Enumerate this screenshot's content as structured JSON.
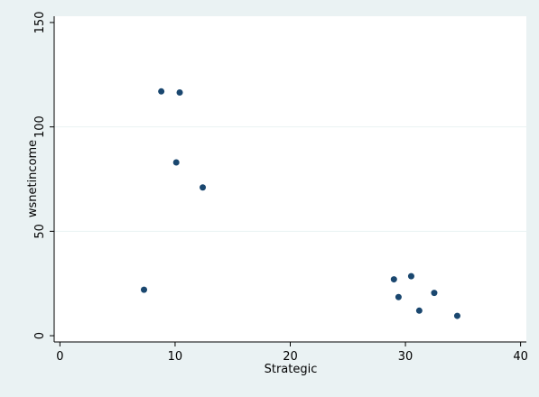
{
  "chart_data": {
    "type": "scatter",
    "title": "",
    "xlabel": "Strategic",
    "ylabel": "wsnetincome",
    "xlim": [
      -0.5,
      40.5
    ],
    "ylim": [
      -3,
      153
    ],
    "x_ticks": [
      0,
      10,
      20,
      30,
      40
    ],
    "y_ticks": [
      0,
      50,
      100,
      150
    ],
    "x_tick_labels": [
      "0",
      "10",
      "20",
      "30",
      "40"
    ],
    "y_tick_labels": [
      "0",
      "50",
      "100",
      "150"
    ],
    "grid": "horizontal",
    "legend": "none",
    "points": [
      {
        "x": 7.3,
        "y": 22
      },
      {
        "x": 8.8,
        "y": 117
      },
      {
        "x": 10.1,
        "y": 83
      },
      {
        "x": 10.4,
        "y": 116.5
      },
      {
        "x": 12.4,
        "y": 71
      },
      {
        "x": 29.0,
        "y": 27
      },
      {
        "x": 29.4,
        "y": 18.5
      },
      {
        "x": 30.5,
        "y": 28.5
      },
      {
        "x": 31.2,
        "y": 12
      },
      {
        "x": 32.5,
        "y": 20.5
      },
      {
        "x": 34.5,
        "y": 9.5
      }
    ]
  },
  "colors": {
    "background": "#eaf2f3",
    "plot_area": "#ffffff",
    "marker": "#1a476f",
    "grid": "#eaf2f3",
    "axis": "#000000"
  }
}
